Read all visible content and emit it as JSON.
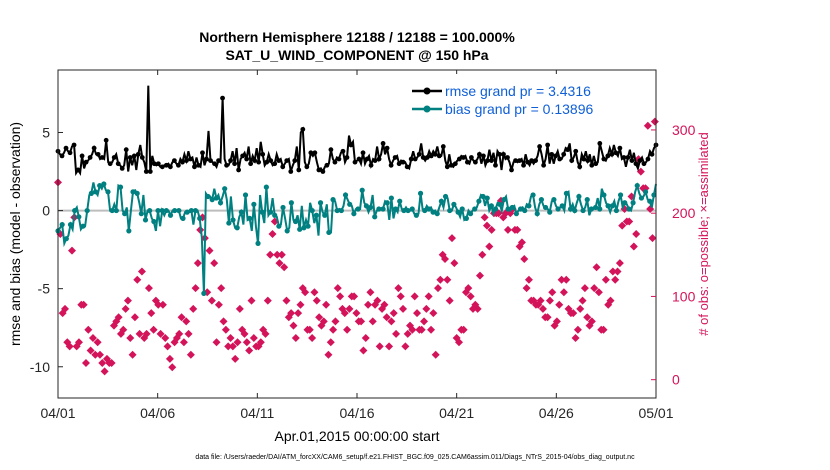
{
  "chart_data": {
    "type": "line",
    "title": "Northern Hemisphere 12188 / 12188 = 100.000%",
    "subtitle": "SAT_U_WIND_COMPONENT @ 150 hPa",
    "xlabel": "Apr.01,2015 00:00:00 start",
    "ylabel": "rmse and bias (model - observation)",
    "ylabel_right": "# of obs: o=possible; ×=assimilated",
    "ylim": [
      -12,
      9
    ],
    "ylim_right": [
      -22,
      372
    ],
    "xlim": [
      0,
      30
    ],
    "x_tick_labels": [
      "04/01",
      "04/06",
      "04/11",
      "04/16",
      "04/21",
      "04/26",
      "05/01"
    ],
    "x_tick_values": [
      0,
      5,
      10,
      15,
      20,
      25,
      30
    ],
    "y_tick_labels": [
      "-10",
      "-5",
      "0",
      "5"
    ],
    "y_tick_values": [
      -10,
      -5,
      0,
      5
    ],
    "y_right_tick_labels": [
      "0",
      "100",
      "200",
      "300"
    ],
    "y_right_tick_values": [
      0,
      100,
      200,
      300
    ],
    "zero_line": 0,
    "footer": "data file: /Users/raeder/DAI/ATM_forcXX/CAM6_setup/f.e21.FHIST_BGC.f09_025.CAM6assim.011/Diags_NTrS_2015-04/obs_diag_output.nc",
    "series": [
      {
        "name": "rmse grand pr = 3.4316",
        "color": "#000000",
        "axis": "left",
        "marker": "asterisk",
        "x_step": 0.25,
        "values": [
          3.8,
          3.6,
          3.5,
          3.7,
          4.0,
          3.8,
          3.7,
          4.1,
          4.2,
          2.4,
          2.6,
          2.4,
          3.5,
          2.7,
          3.1,
          3.2,
          3.4,
          3.6,
          4.0,
          3.6,
          3.6,
          3.3,
          3.4,
          3.3,
          4.5,
          3.1,
          3.0,
          3.1,
          3.4,
          3.6,
          3.0,
          2.9,
          2.7,
          2.9,
          3.9,
          2.5,
          3.4,
          2.9,
          3.5,
          2.6,
          3.6,
          4.2,
          3.4,
          3.1,
          2.5,
          8.0,
          2.5,
          3.5,
          3.0,
          2.9,
          3.0,
          2.8,
          2.8,
          2.9,
          2.9,
          3.0,
          2.8,
          3.1,
          3.2,
          3.0,
          2.9,
          3.3,
          3.1,
          3.6,
          3.2,
          3.8,
          3.3,
          3.4,
          2.8,
          3.4,
          2.9,
          2.8,
          3.7,
          2.9,
          3.3,
          5.1,
          3.2,
          3.1,
          3.0,
          2.8,
          3.2,
          3.1,
          7.2,
          3.3,
          2.9,
          2.9,
          3.2,
          3.8,
          3.0,
          4.0,
          2.6,
          3.3,
          3.5,
          3.7,
          3.3,
          4.1,
          3.0,
          3.5,
          3.2,
          4.0,
          3.1,
          4.4,
          3.6,
          2.9,
          3.1,
          3.6,
          3.2,
          2.9,
          3.0,
          3.6,
          3.2,
          3.3,
          2.8,
          3.0,
          3.2,
          3.3,
          2.5,
          2.9,
          3.2,
          4.1,
          2.6,
          5.0,
          5.2,
          3.1,
          2.8,
          3.0,
          3.7,
          3.5,
          3.7,
          3.1,
          2.6,
          2.7,
          2.5,
          2.8,
          2.9,
          3.0,
          3.9,
          3.3,
          3.1,
          3.4,
          3.3,
          3.7,
          3.8,
          3.1,
          3.4,
          4.8,
          4.2,
          4.4,
          3.1,
          3.2,
          3.3,
          3.0,
          3.7,
          3.0,
          3.3,
          3.5,
          2.9,
          3.3,
          3.2,
          4.1,
          3.3,
          3.6,
          4.3,
          3.6,
          4.0,
          3.3,
          2.9,
          3.2,
          3.4,
          3.5,
          3.0,
          3.2,
          3.1,
          3.1,
          2.8,
          2.7,
          3.3,
          3.8,
          3.3,
          3.4,
          3.6,
          4.3,
          3.4,
          3.2,
          3.4,
          3.8,
          3.5,
          3.8,
          3.6,
          4.1,
          3.5,
          3.5,
          4.1,
          3.2,
          2.8,
          3.6,
          2.9,
          2.8,
          3.0,
          3.2,
          3.3,
          3.5,
          3.4,
          3.5,
          3.1,
          3.0,
          3.4,
          3.2,
          3.1,
          3.3,
          3.6,
          3.0,
          3.5,
          2.9,
          3.2,
          3.9,
          3.2,
          3.7,
          2.9,
          3.8,
          3.6,
          2.6,
          3.6,
          3.3,
          3.4,
          3.1,
          2.6,
          3.1,
          3.2,
          3.1,
          3.2,
          3.3,
          2.9,
          3.6,
          3.1,
          2.9,
          3.2,
          3.0,
          3.2,
          3.5,
          4.1,
          3.6,
          2.9,
          3.3,
          4.2,
          3.0,
          3.6,
          3.0,
          3.5,
          3.8,
          3.3,
          3.3,
          3.6,
          4.0,
          3.9,
          4.3,
          3.2,
          3.4,
          3.8,
          3.1,
          2.8,
          3.6,
          3.3,
          3.8,
          3.2,
          3.6,
          2.9,
          3.5,
          3.0,
          3.1,
          4.3,
          3.8,
          3.3,
          3.2,
          3.5,
          4.0,
          3.6,
          4.2,
          3.7,
          3.5,
          4.0,
          3.3,
          3.4,
          2.8,
          3.4,
          3.9,
          3.2,
          3.7,
          3.0,
          2.7,
          3.2,
          3.4,
          3.0,
          3.1,
          3.3,
          3.8,
          3.6,
          4.0,
          4.2
        ]
      },
      {
        "name": "bias grand pr = 0.13896",
        "color": "#008080",
        "axis": "left",
        "marker": "circle",
        "values": [
          -1.3,
          -1.1,
          -0.9,
          -2.1,
          -1.8,
          -1.6,
          -0.9,
          -1.2,
          0.0,
          0.2,
          -0.4,
          -1.2,
          -1.0,
          -1.0,
          0.0,
          1.0,
          1.1,
          1.8,
          1.2,
          1.0,
          1.6,
          1.4,
          1.7,
          1.3,
          1.2,
          0.0,
          0.0,
          0.4,
          0.0,
          1.6,
          1.5,
          0.0,
          -0.2,
          0.2,
          -1.3,
          0.0,
          1.2,
          1.3,
          1.1,
          0.5,
          -0.2,
          1.0,
          -0.6,
          0.0,
          0.0,
          -0.5,
          -0.7,
          -1.3,
          0.0,
          -1.0,
          0.0,
          -0.3,
          0.0,
          0.0,
          -0.3,
          0.0,
          0.0,
          0.0,
          0.0,
          -0.5,
          -0.5,
          -0.1,
          -0.1,
          -0.1,
          0.0,
          -0.9,
          0.0,
          0.0,
          -0.5,
          -1.7,
          -5.3,
          1.1,
          0.9,
          0.9,
          0.7,
          1.4,
          0.8,
          1.0,
          0.5,
          0.9,
          1.4,
          0.7,
          -0.8,
          0.9,
          -0.6,
          -1.1,
          -1.1,
          -0.4,
          -0.1,
          -0.9,
          1.0,
          -0.6,
          -0.5,
          -1.3,
          0.4,
          -1.0,
          -2.1,
          1.0,
          -0.1,
          -0.8,
          1.5,
          -0.3,
          -0.1,
          0.8,
          -0.3,
          -0.4,
          -1.0,
          -0.9,
          0.2,
          -0.5,
          -1.3,
          -1.1,
          0.5,
          -0.6,
          -0.7,
          -0.3,
          -1.2,
          0.3,
          -1.1,
          -0.6,
          -1.0,
          0.5,
          0.0,
          -0.8,
          -0.3,
          -1.6,
          0.5,
          -0.1,
          -0.3,
          0.4,
          -1.4,
          -1.4,
          0.7,
          0.6,
          0.0,
          0.1,
          0.0,
          0.3,
          1.0,
          0.7,
          0.4,
          0.3,
          -0.2,
          0.1,
          0.1,
          0.1,
          1.3,
          0.5,
          0.3,
          -0.1,
          0.2,
          1.0,
          -0.4,
          0.0,
          0.1,
          0.1,
          0.1,
          0.6,
          0.5,
          -0.6,
          0.8,
          -0.5,
          0.1,
          -0.1,
          0.6,
          0.1,
          0.0,
          0.2,
          0.0,
          0.0,
          0.1,
          -0.2,
          -0.3,
          -0.2,
          1.1,
          0.1,
          0.0,
          0.3,
          0.1,
          0.2,
          -0.1,
          0.0,
          -0.2,
          0.2,
          0.6,
          0.2,
          0.9,
          0.8,
          0.0,
          0.0,
          0.4,
          0.2,
          -0.1,
          -0.4,
          0.1,
          -0.6,
          -0.5,
          0.0,
          -0.2,
          0.0,
          0.1,
          0.2,
          0.6,
          1.0,
          0.9,
          0.3,
          0.8,
          0.0,
          0.3,
          -0.2,
          0.1,
          0.5,
          0.4,
          0.0,
          0.7,
          0.9,
          0.1,
          0.0,
          0.2,
          0.3,
          -0.2,
          0.0,
          0.1,
          0.2,
          0.0,
          0.4,
          0.3,
          0.9,
          1.0,
          0.2,
          -0.2,
          0.4,
          0.7,
          0.3,
          0.2,
          0.1,
          -0.1,
          0.6,
          0.7,
          0.3,
          0.1,
          0.2,
          0.3,
          0.0,
          1.1,
          1.2,
          0.1,
          0.4,
          0.0,
          0.5,
          0.9,
          0.4,
          0.0,
          0.2,
          0.7,
          -0.3,
          0.1,
          0.1,
          0.2,
          0.8,
          0.1,
          1.4,
          1.0,
          0.5,
          0.3,
          -0.1,
          0.3,
          0.6,
          0.0,
          0.6,
          1.0,
          0.2,
          0.5,
          0.4,
          0.1,
          0.0,
          0.5,
          1.2,
          1.6,
          1.1,
          0.8,
          0.9,
          1.2,
          0.7,
          0.6,
          0.2,
          1.0,
          1.7
        ]
      },
      {
        "name": "# obs possible / assimilated",
        "color": "#d4145a",
        "axis": "right",
        "marker": "plus",
        "values": [
          237,
          165,
          175,
          125,
          80,
          75,
          85,
          80,
          45,
          55,
          40,
          150,
          155,
          205,
          195,
          75,
          40,
          50,
          45,
          55,
          90,
          75,
          90,
          100,
          20,
          30,
          60,
          40,
          35,
          30,
          50,
          55,
          30,
          70,
          45,
          25,
          30,
          20,
          20,
          15,
          10,
          15,
          25,
          15,
          20,
          20,
          20,
          50,
          65,
          75,
          70,
          75,
          75,
          60,
          55,
          40,
          60,
          70,
          85,
          95,
          95,
          55,
          50,
          65,
          30,
          85,
          75,
          80,
          120,
          95,
          55,
          100,
          130,
          35,
          50,
          65,
          55,
          150,
          110,
          140,
          80,
          70,
          60,
          90,
          95,
          100,
          90,
          60,
          55,
          45,
          90,
          80,
          50,
          60,
          40,
          50,
          25,
          10,
          15,
          40,
          45,
          55,
          50,
          60,
          55,
          80,
          75,
          60,
          45,
          75,
          70,
          65,
          55,
          35,
          30,
          70,
          85,
          95,
          110,
          150,
          140,
          170,
          180,
          210,
          195,
          160,
          170,
          185,
          105,
          120,
          155,
          130,
          95,
          105,
          140,
          60,
          45,
          80,
          90,
          55,
          110,
          115,
          70,
          35,
          60,
          45,
          40,
          45,
          50,
          60,
          40,
          35,
          25,
          30,
          45,
          55,
          85,
          90,
          60,
          85,
          55,
          90,
          45,
          60,
          35,
          80,
          95,
          90,
          50,
          45,
          40,
          55,
          40,
          50,
          45,
          40,
          60,
          40,
          55,
          45,
          95,
          125,
          150,
          170,
          175,
          165,
          190,
          160,
          150,
          130,
          140,
          145,
          150,
          110,
          135,
          120,
          95,
          100,
          75,
          85,
          80,
          90,
          65,
          90,
          50,
          55,
          80,
          75,
          90,
          115,
          110,
          100,
          105,
          90,
          60,
          55,
          60,
          70,
          50,
          90,
          105,
          110,
          95,
          110,
          75,
          60,
          65,
          45,
          70,
          80,
          90,
          40,
          30,
          35,
          45,
          55,
          60,
          75,
          70,
          70,
          110,
          125,
          100,
          90,
          85,
          70,
          80,
          95,
          60,
          70,
          85,
          95,
          100,
          120,
          100,
          110,
          80,
          85,
          70,
          80,
          70,
          60,
          35,
          60,
          50,
          80,
          90,
          110,
          105,
          85,
          70,
          95,
          90,
          80,
          95,
          95,
          40,
          35,
          85,
          85,
          90,
          70,
          75,
          45,
          40,
          55,
          70,
          65,
          80,
          75,
          55,
          60,
          110,
          110,
          100,
          70,
          85,
          60,
          40,
          35,
          55,
          65,
          65,
          70,
          60,
          85,
          100,
          120,
          80,
          75,
          60,
          90,
          60,
          55,
          70,
          75,
          85,
          85,
          100,
          100,
          60,
          50,
          80,
          60,
          30,
          60,
          110,
          175,
          120,
          145,
          150,
          110,
          145,
          85,
          120,
          55,
          95,
          130,
          170,
          205,
          140,
          100,
          50,
          85,
          45,
          80,
          60,
          60,
          60,
          75,
          105,
          115,
          110,
          125,
          100,
          105,
          85,
          115,
          90,
          80,
          85,
          110,
          125,
          160,
          150,
          145,
          195,
          165,
          185,
          170,
          160,
          175,
          180,
          200,
          200,
          220,
          200,
          210,
          200,
          225,
          215,
          205,
          195,
          185,
          200,
          210,
          180,
          195,
          200,
          215,
          205,
          190,
          180,
          195,
          180,
          165,
          160,
          150,
          165,
          155,
          145,
          110,
          110,
          115,
          120,
          100,
          95,
          85,
          95,
          100,
          90,
          75,
          90,
          80,
          95,
          100,
          85,
          65,
          75,
          90,
          75,
          85,
          95,
          110,
          105,
          70,
          65,
          85,
          70,
          95,
          90,
          100,
          120,
          110,
          105,
          130,
          120,
          110,
          85,
          70,
          80,
          75,
          80,
          70,
          50,
          55,
          60,
          75,
          85,
          105,
          95,
          120,
          110,
          90,
          75,
          80,
          65,
          80,
          70,
          90,
          110,
          120,
          135,
          140,
          105,
          75,
          60,
          40,
          60,
          85,
          120,
          105,
          90,
          75,
          95,
          105,
          130,
          145,
          120,
          135,
          130,
          155,
          140,
          120,
          185,
          185,
          205,
          200,
          190,
          185,
          190,
          200,
          220,
          165,
          160,
          195,
          175,
          215,
          265,
          240,
          250,
          240,
          230,
          215,
          230,
          225,
          305,
          195,
          205,
          205,
          170,
          210,
          310,
          240
        ]
      }
    ]
  },
  "legend": {
    "rmse_label": "rmse grand pr = 3.4316",
    "bias_label": "bias grand pr = 0.13896"
  }
}
